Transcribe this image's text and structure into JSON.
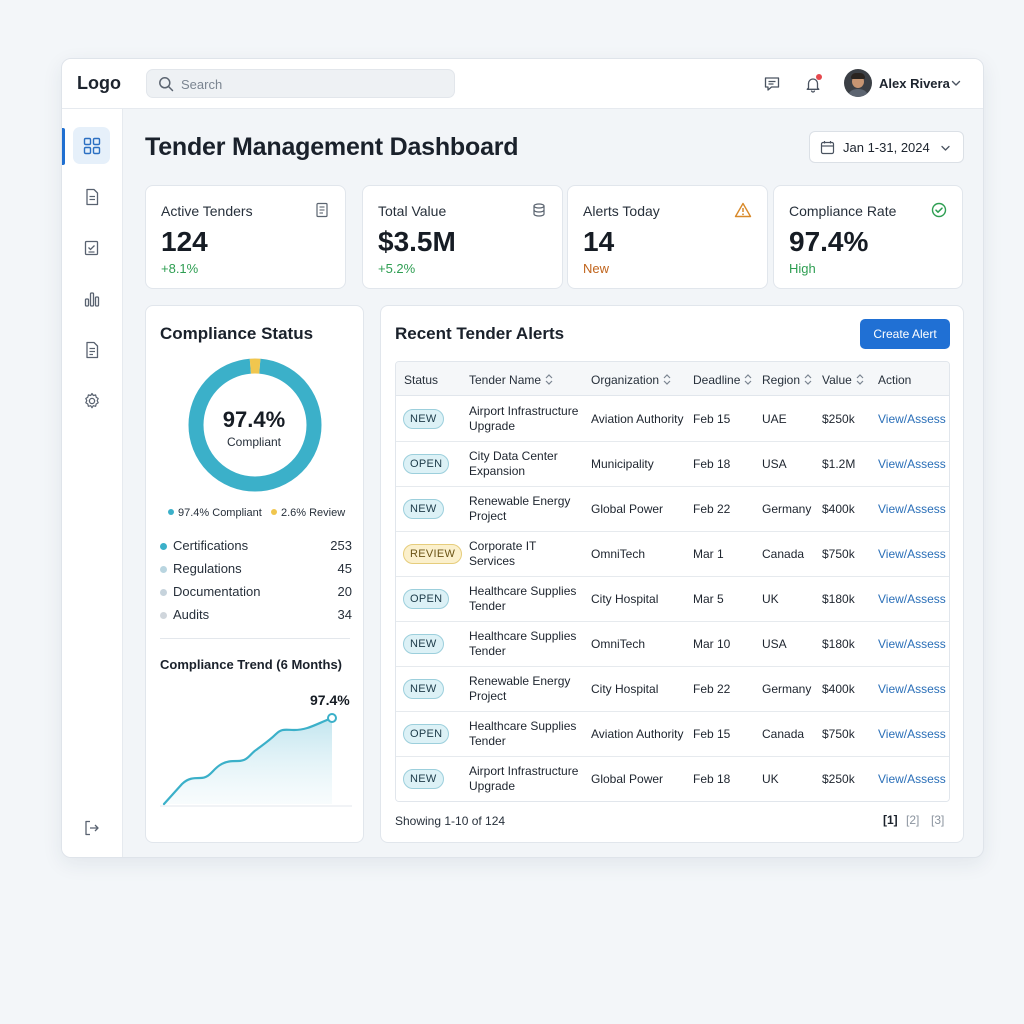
{
  "header": {
    "logo": "Logo",
    "search_placeholder": "Search",
    "user_name": "Alex Rivera",
    "icons": [
      "chat-icon",
      "bell-icon",
      "chevron-down-icon"
    ]
  },
  "sidebar": {
    "items": [
      "dashboard-icon",
      "document-icon",
      "checklist-icon",
      "bar-chart-icon",
      "report-icon",
      "settings-icon"
    ],
    "logout": "logout-icon"
  },
  "page": {
    "title": "Tender Management Dashboard",
    "date_range": "Jan 1-31, 2024"
  },
  "kpis": [
    {
      "label": "Active Tenders",
      "value": "124",
      "sub": "+8.1%",
      "sub_color": "#2e9e52",
      "icon": "document-icon"
    },
    {
      "label": "Total Value",
      "value": "$3.5M",
      "sub": "+5.2%",
      "sub_color": "#2e9e52",
      "icon": "database-icon"
    },
    {
      "label": "Alerts Today",
      "value": "14",
      "sub": "New",
      "sub_color": "#c0641c",
      "icon": "warning-icon"
    },
    {
      "label": "Compliance Rate",
      "value": "97.4%",
      "sub": "High",
      "sub_color": "#2e9e52",
      "icon": "check-circle-icon"
    }
  ],
  "compliance": {
    "title": "Compliance Status",
    "value": "97.4%",
    "value_label": "Compliant",
    "legend_compliant": "97.4% Compliant",
    "legend_review": "2.6% Review",
    "colors": {
      "compliant": "#3bb0c9",
      "review": "#f0c64e"
    },
    "categories": [
      {
        "name": "Certifications",
        "count": "253",
        "color": "#3bb0c9"
      },
      {
        "name": "Regulations",
        "count": "45",
        "color": "#b9d5e0"
      },
      {
        "name": "Documentation",
        "count": "20",
        "color": "#c6d3dc"
      },
      {
        "name": "Audits",
        "count": "34",
        "color": "#d0d6dc"
      }
    ],
    "trend_title": "Compliance Trend (6 Months)",
    "trend_value": "97.4%"
  },
  "chart_data": {
    "type": "donut",
    "values": [
      97.4,
      2.6
    ]
  },
  "alerts": {
    "title": "Recent Tender Alerts",
    "create_label": "Create Alert",
    "columns": [
      "Status",
      "Tender Name",
      "Organization",
      "Deadline",
      "Region",
      "Value",
      "Action"
    ],
    "rows": [
      {
        "status": "NEW",
        "kind": "new",
        "name": "Airport Infrastructure Upgrade",
        "org": "Aviation Authority",
        "deadline": "Feb 15",
        "region": "UAE",
        "value": "$250k",
        "action": "View/Assess"
      },
      {
        "status": "OPEN",
        "kind": "open",
        "name": "City Data Center Expansion",
        "org": "Municipality",
        "deadline": "Feb 18",
        "region": "USA",
        "value": "$1.2M",
        "action": "View/Assess"
      },
      {
        "status": "NEW",
        "kind": "new",
        "name": "Renewable Energy Project",
        "org": "Global Power",
        "deadline": "Feb 22",
        "region": "Germany",
        "value": "$400k",
        "action": "View/Assess"
      },
      {
        "status": "REVIEW",
        "kind": "review",
        "name": "Corporate IT Services",
        "org": "OmniTech",
        "deadline": "Mar 1",
        "region": "Canada",
        "value": "$750k",
        "action": "View/Assess"
      },
      {
        "status": "OPEN",
        "kind": "open",
        "name": "Healthcare Supplies Tender",
        "org": "City Hospital",
        "deadline": "Mar 5",
        "region": "UK",
        "value": "$180k",
        "action": "View/Assess"
      },
      {
        "status": "NEW",
        "kind": "new",
        "name": "Healthcare Supplies Tender",
        "org": "OmniTech",
        "deadline": "Mar 10",
        "region": "USA",
        "value": "$180k",
        "action": "View/Assess"
      },
      {
        "status": "NEW",
        "kind": "new",
        "name": "Renewable Energy Project",
        "org": "City Hospital",
        "deadline": "Feb 22",
        "region": "Germany",
        "value": "$400k",
        "action": "View/Assess"
      },
      {
        "status": "OPEN",
        "kind": "open",
        "name": "Healthcare Supplies Tender",
        "org": "Aviation Authority",
        "deadline": "Feb 15",
        "region": "Canada",
        "value": "$750k",
        "action": "View/Assess"
      },
      {
        "status": "NEW",
        "kind": "new",
        "name": "Airport Infrastructure Upgrade",
        "org": "Global Power",
        "deadline": "Feb 18",
        "region": "UK",
        "value": "$250k",
        "action": "View/Assess"
      }
    ],
    "showing": "Showing 1-10 of 124",
    "pages": [
      "[1]",
      "[2]",
      "[3]"
    ]
  }
}
